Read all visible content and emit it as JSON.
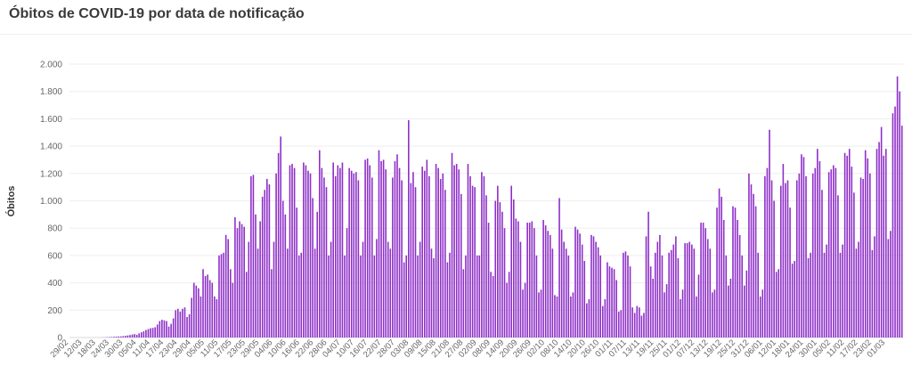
{
  "header": {
    "title": "Óbitos de COVID-19 por data de notificação"
  },
  "chart_data": {
    "type": "bar",
    "title": "Óbitos de COVID-19 por data de notificação",
    "xlabel": "",
    "ylabel": "Óbitos",
    "ylim": [
      0,
      2000
    ],
    "yticks": [
      0,
      200,
      400,
      600,
      800,
      1000,
      1200,
      1400,
      1600,
      1800,
      2000
    ],
    "ytick_labels": [
      "0",
      "200",
      "400",
      "600",
      "800",
      "1.000",
      "1.200",
      "1.400",
      "1.600",
      "1.800",
      "2.000"
    ],
    "xtick_labels": [
      "29/02",
      "12/03",
      "18/03",
      "24/03",
      "30/03",
      "05/04",
      "11/04",
      "17/04",
      "23/04",
      "29/04",
      "05/05",
      "11/05",
      "17/05",
      "23/05",
      "29/05",
      "04/06",
      "10/06",
      "16/06",
      "22/06",
      "28/06",
      "04/07",
      "10/07",
      "16/07",
      "22/07",
      "28/07",
      "03/08",
      "09/08",
      "15/08",
      "21/08",
      "27/08",
      "02/09",
      "08/09",
      "14/09",
      "20/09",
      "26/09",
      "02/10",
      "08/10",
      "14/10",
      "20/10",
      "26/10",
      "01/11",
      "07/11",
      "13/11",
      "19/11",
      "25/11",
      "01/12",
      "07/12",
      "13/12",
      "19/12",
      "25/12",
      "31/12",
      "06/01",
      "12/01",
      "18/01",
      "24/01",
      "30/01",
      "05/02",
      "11/02",
      "17/02",
      "23/02",
      "01/03"
    ],
    "grid": true,
    "bar_color": "#8e2fc7",
    "values": [
      0,
      0,
      0,
      0,
      0,
      0,
      0,
      0,
      0,
      0,
      0,
      0,
      0,
      0,
      1,
      1,
      2,
      3,
      4,
      5,
      6,
      7,
      8,
      10,
      12,
      15,
      18,
      22,
      25,
      20,
      30,
      38,
      45,
      55,
      62,
      68,
      70,
      75,
      95,
      120,
      130,
      125,
      120,
      80,
      100,
      140,
      200,
      210,
      190,
      210,
      220,
      150,
      170,
      290,
      400,
      380,
      360,
      300,
      500,
      450,
      460,
      420,
      400,
      300,
      280,
      600,
      610,
      620,
      750,
      720,
      500,
      400,
      880,
      800,
      850,
      830,
      810,
      480,
      700,
      1180,
      1190,
      900,
      650,
      850,
      1030,
      1080,
      1160,
      1120,
      500,
      700,
      1200,
      1350,
      1470,
      1000,
      900,
      650,
      1260,
      1270,
      1240,
      950,
      600,
      620,
      1280,
      1260,
      1220,
      1200,
      1020,
      650,
      920,
      1370,
      1240,
      1170,
      1100,
      600,
      700,
      1280,
      1180,
      1260,
      1240,
      1280,
      600,
      800,
      1240,
      1220,
      1200,
      1210,
      1150,
      600,
      700,
      1300,
      1310,
      1260,
      1170,
      600,
      720,
      1370,
      1290,
      1300,
      1230,
      700,
      650,
      1170,
      1290,
      1340,
      1240,
      1150,
      550,
      600,
      1590,
      1130,
      1210,
      1100,
      600,
      700,
      1250,
      1220,
      1300,
      1180,
      650,
      580,
      1270,
      1240,
      1160,
      1200,
      1080,
      550,
      620,
      1350,
      1260,
      1270,
      1230,
      1050,
      500,
      600,
      1270,
      1180,
      1110,
      1100,
      600,
      600,
      1210,
      1180,
      1040,
      840,
      480,
      450,
      1000,
      1110,
      990,
      920,
      800,
      400,
      480,
      1110,
      1010,
      870,
      850,
      700,
      350,
      400,
      840,
      840,
      850,
      800,
      600,
      330,
      350,
      860,
      820,
      780,
      750,
      650,
      310,
      300,
      1020,
      790,
      700,
      650,
      600,
      300,
      330,
      810,
      790,
      760,
      680,
      560,
      250,
      280,
      750,
      740,
      700,
      660,
      600,
      230,
      280,
      550,
      520,
      510,
      500,
      420,
      190,
      200,
      620,
      630,
      600,
      520,
      220,
      180,
      230,
      220,
      160,
      180,
      740,
      920,
      520,
      430,
      620,
      700,
      750,
      600,
      330,
      390,
      620,
      640,
      680,
      740,
      580,
      280,
      350,
      690,
      690,
      700,
      680,
      650,
      300,
      460,
      840,
      840,
      800,
      720,
      650,
      330,
      350,
      950,
      1090,
      1030,
      860,
      600,
      380,
      430,
      960,
      950,
      860,
      750,
      600,
      380,
      490,
      1200,
      1120,
      1050,
      960,
      620,
      300,
      350,
      1180,
      1240,
      1520,
      1150,
      1000,
      480,
      500,
      1110,
      1270,
      1130,
      1150,
      950,
      540,
      560,
      1150,
      1200,
      1340,
      1320,
      1180,
      580,
      620,
      1200,
      1240,
      1380,
      1290,
      1080,
      620,
      680,
      1210,
      1230,
      1260,
      1240,
      1040,
      620,
      680,
      1350,
      1330,
      1380,
      1250,
      1060,
      650,
      700,
      1170,
      1160,
      1370,
      1310,
      1200,
      640,
      740,
      1380,
      1430,
      1540,
      1330,
      1380,
      720,
      780,
      1640,
      1690,
      1910,
      1800,
      1550
    ]
  }
}
